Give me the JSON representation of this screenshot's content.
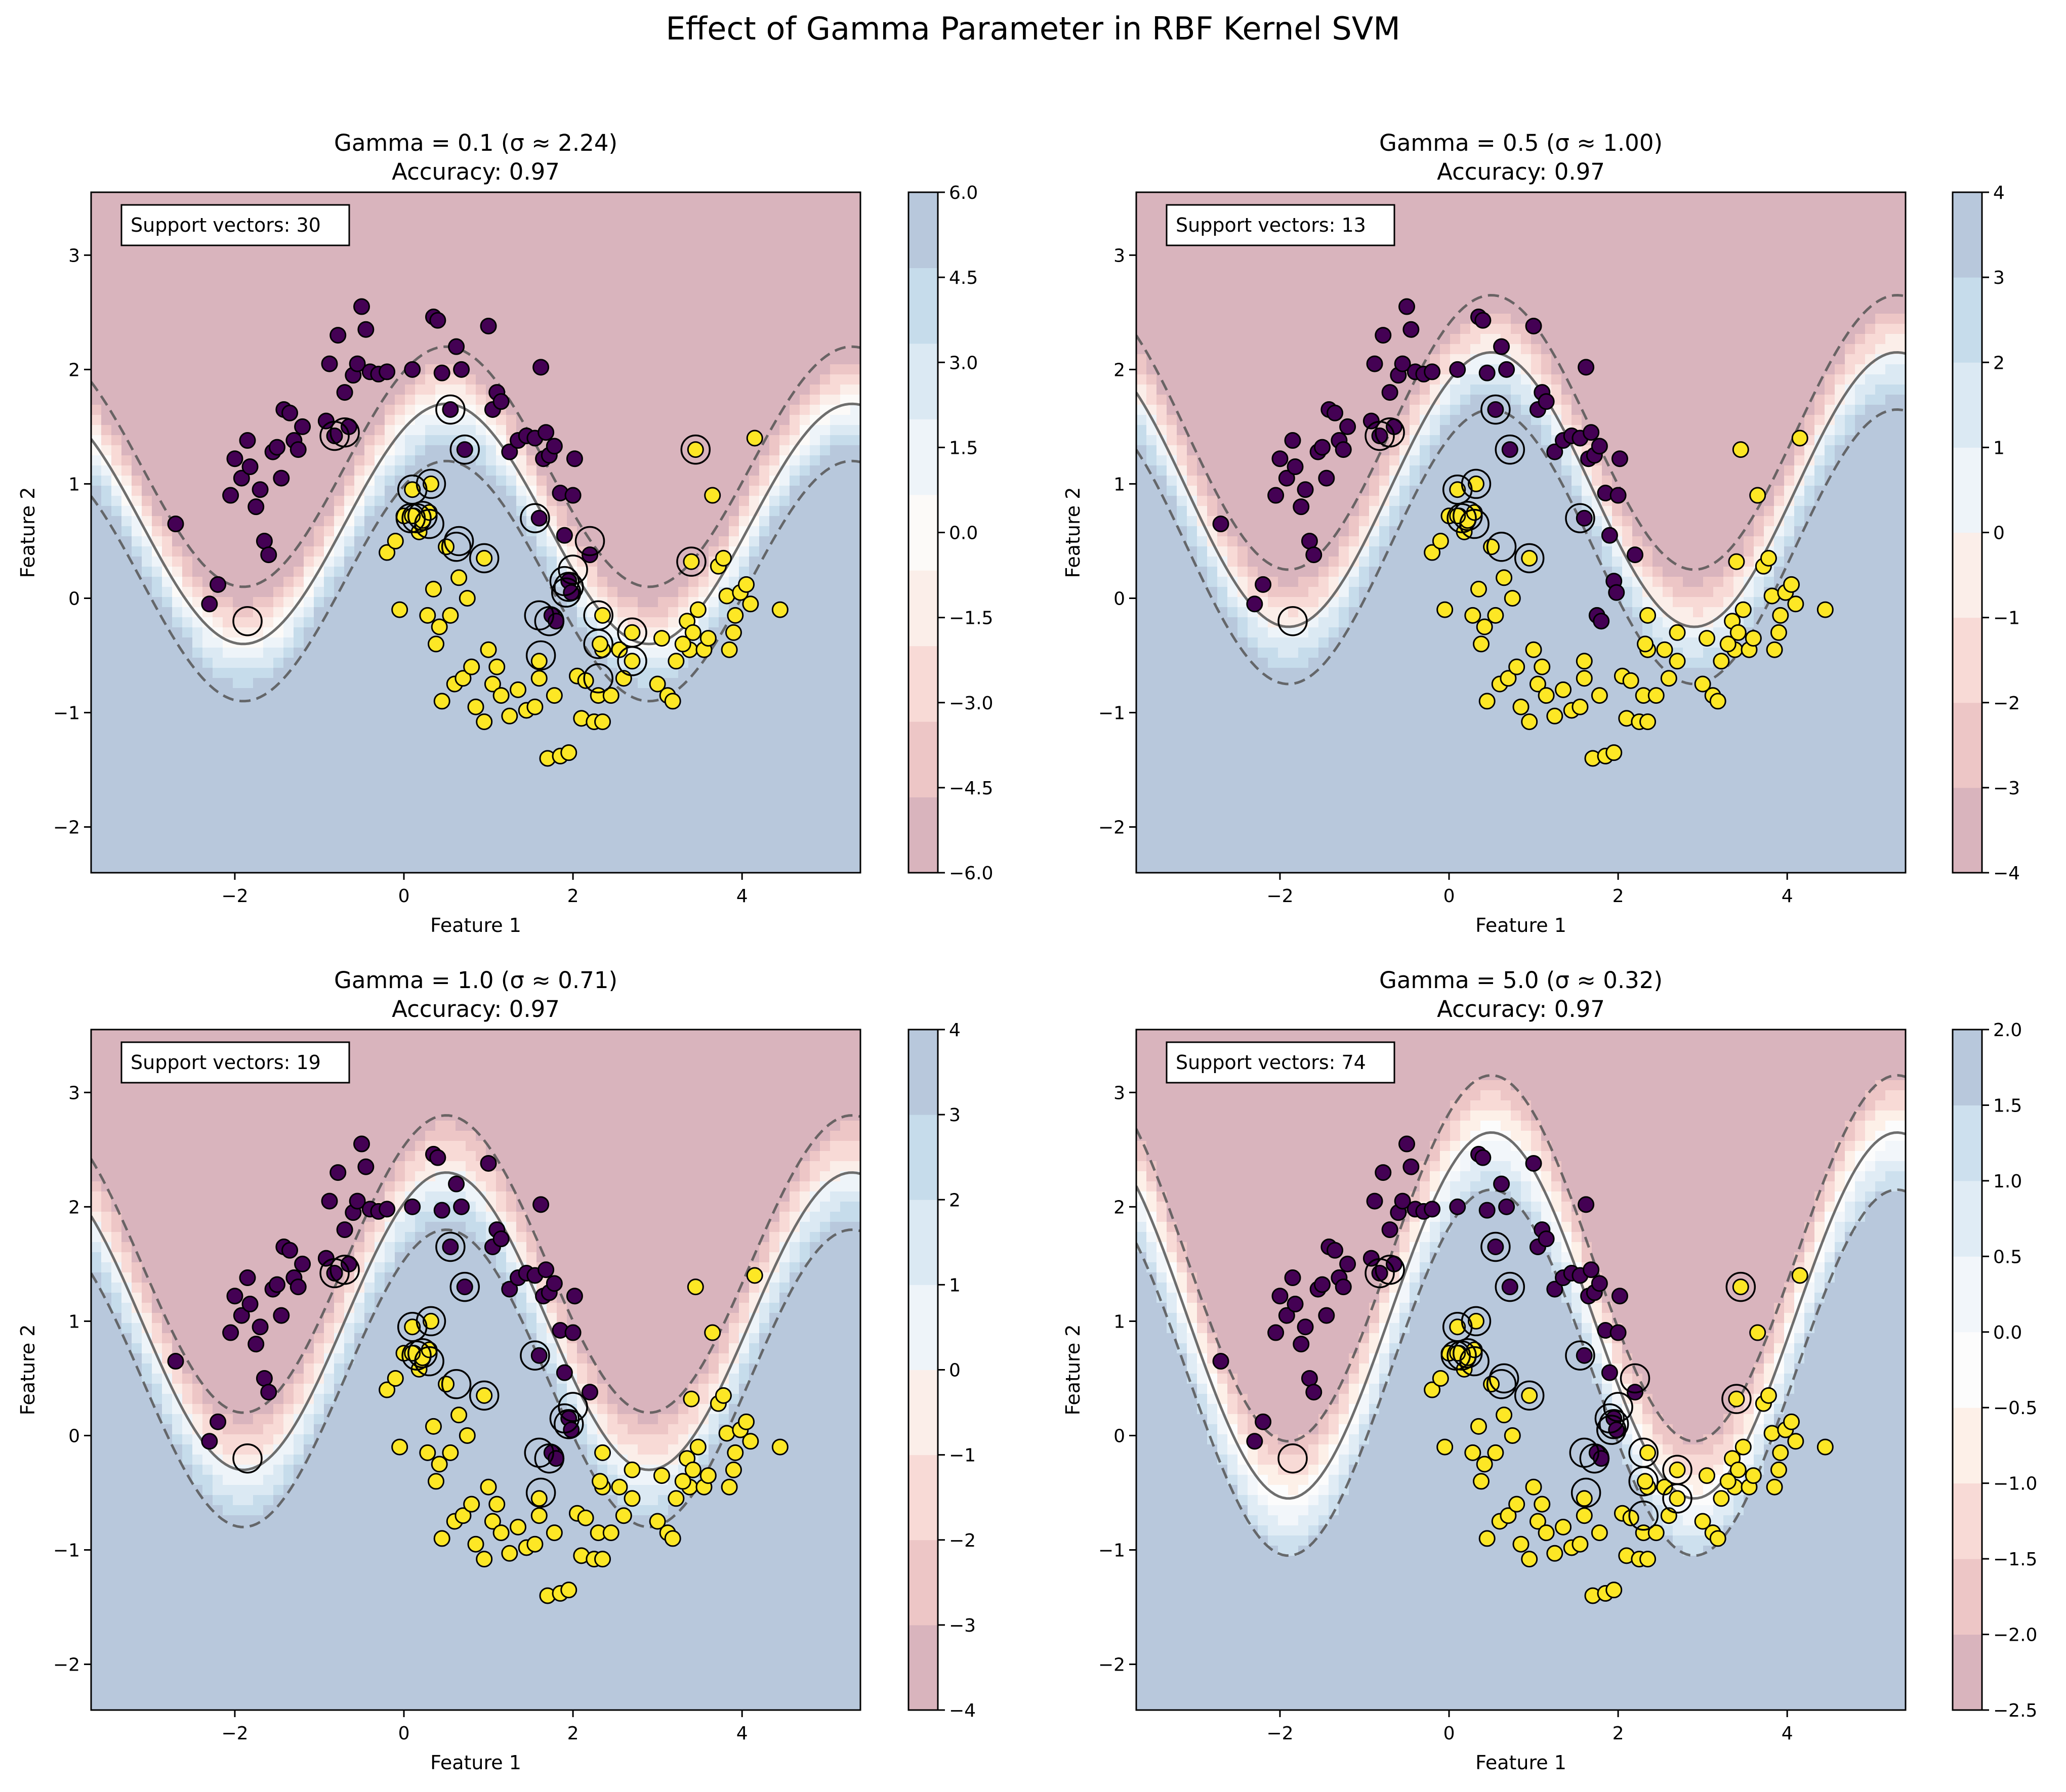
{
  "figure": {
    "title": "Effect of Gamma Parameter in RBF Kernel SVM"
  },
  "colors": {
    "class0": "#440154",
    "class1": "#fde725",
    "negative_dark": "#c35b6f",
    "positive_dark": "#6f8fb8",
    "contour_line": "#555555"
  },
  "chart_data": [
    {
      "type": "scatter",
      "title": "Gamma = 0.1 (σ ≈ 2.24)",
      "subtitle": "Accuracy: 0.97",
      "xlabel": "Feature 1",
      "ylabel": "Feature 2",
      "xlim": [
        -3.7,
        5.4
      ],
      "ylim": [
        -2.4,
        3.55
      ],
      "xticks": [
        -2,
        0,
        2,
        4
      ],
      "yticks": [
        -2,
        -1,
        0,
        1,
        2,
        3
      ],
      "annotation": "Support vectors: 30",
      "colorbar": {
        "ticks": [
          "-6.0",
          "-4.5",
          "-3.0",
          "-1.5",
          "0.0",
          "1.5",
          "3.0",
          "4.5",
          "6.0"
        ],
        "colors": [
          "#d9b4bd",
          "#edc6c6",
          "#f8dad6",
          "#fbeee9",
          "#fcfaf8",
          "#eef4f9",
          "#dbe9f3",
          "#c6dceb",
          "#b8c8dc"
        ]
      },
      "boundary": {
        "a": 1.05,
        "b": 0.15,
        "z_scale": 2.2
      },
      "support_vector_count": 30
    },
    {
      "type": "scatter",
      "title": "Gamma = 0.5 (σ ≈ 1.00)",
      "subtitle": "Accuracy: 0.97",
      "xlabel": "Feature 1",
      "ylabel": "Feature 2",
      "xlim": [
        -3.7,
        5.4
      ],
      "ylim": [
        -2.4,
        3.55
      ],
      "xticks": [
        -2,
        0,
        2,
        4
      ],
      "yticks": [
        -2,
        -1,
        0,
        1,
        2,
        3
      ],
      "annotation": "Support vectors: 13",
      "colorbar": {
        "ticks": [
          "-4",
          "-3",
          "-2",
          "-1",
          "0",
          "1",
          "2",
          "3",
          "4"
        ],
        "colors": [
          "#d9b4bd",
          "#edc6c6",
          "#f8dad6",
          "#fbeee9",
          "#eef4f9",
          "#dbe9f3",
          "#c6dceb",
          "#b8c8dc"
        ]
      },
      "boundary": {
        "a": 1.2,
        "b": 0.45,
        "z_scale": 2.0
      },
      "support_vector_count": 13
    },
    {
      "type": "scatter",
      "title": "Gamma = 1.0 (σ ≈ 0.71)",
      "subtitle": "Accuracy: 0.97",
      "xlabel": "Feature 1",
      "ylabel": "Feature 2",
      "xlim": [
        -3.7,
        5.4
      ],
      "ylim": [
        -2.4,
        3.55
      ],
      "xticks": [
        -2,
        0,
        2,
        4
      ],
      "yticks": [
        -2,
        -1,
        0,
        1,
        2,
        3
      ],
      "annotation": "Support vectors: 19",
      "colorbar": {
        "ticks": [
          "-4",
          "-3",
          "-2",
          "-1",
          "0",
          "1",
          "2",
          "3",
          "4"
        ],
        "colors": [
          "#d9b4bd",
          "#edc6c6",
          "#f8dad6",
          "#fbeee9",
          "#eef4f9",
          "#dbe9f3",
          "#c6dceb",
          "#b8c8dc"
        ]
      },
      "boundary": {
        "a": 1.3,
        "b": 0.5,
        "z_scale": 1.8
      },
      "support_vector_count": 19
    },
    {
      "type": "scatter",
      "title": "Gamma = 5.0 (σ ≈ 0.32)",
      "subtitle": "Accuracy: 0.97",
      "xlabel": "Feature 1",
      "ylabel": "Feature 2",
      "xlim": [
        -3.7,
        5.4
      ],
      "ylim": [
        -2.4,
        3.55
      ],
      "xticks": [
        -2,
        0,
        2,
        4
      ],
      "yticks": [
        -2,
        -1,
        0,
        1,
        2,
        3
      ],
      "annotation": "Support vectors: 74",
      "colorbar": {
        "ticks": [
          "-2.5",
          "-2.0",
          "-1.5",
          "-1.0",
          "-0.5",
          "0.0",
          "0.5",
          "1.0",
          "1.5",
          "2.0"
        ],
        "colors": [
          "#d9b4bd",
          "#edc6c6",
          "#f8dad6",
          "#fdf0e8",
          "#fcfcfc",
          "#f2f6fa",
          "#e0ecf5",
          "#cde0ee",
          "#b8c8dc"
        ]
      },
      "boundary": {
        "a": 1.6,
        "b": 0.55,
        "z_scale": 1.6
      },
      "support_vector_count": 74
    }
  ],
  "points": {
    "class0": [
      [
        -2.7,
        0.65
      ],
      [
        -2.3,
        -0.05
      ],
      [
        -2.2,
        0.12
      ],
      [
        -2.05,
        0.9
      ],
      [
        -2.0,
        1.22
      ],
      [
        -1.92,
        1.05
      ],
      [
        -1.85,
        1.38
      ],
      [
        -1.82,
        1.15
      ],
      [
        -1.75,
        0.8
      ],
      [
        -1.7,
        0.95
      ],
      [
        -1.65,
        0.5
      ],
      [
        -1.6,
        0.38
      ],
      [
        -1.55,
        1.28
      ],
      [
        -1.5,
        1.32
      ],
      [
        -1.45,
        1.05
      ],
      [
        -1.42,
        1.65
      ],
      [
        -1.35,
        1.62
      ],
      [
        -1.3,
        1.38
      ],
      [
        -1.25,
        1.3
      ],
      [
        -1.2,
        1.5
      ],
      [
        -0.92,
        1.55
      ],
      [
        -0.88,
        2.05
      ],
      [
        -0.82,
        1.42
      ],
      [
        -0.78,
        2.3
      ],
      [
        -0.7,
        1.8
      ],
      [
        -0.65,
        1.5
      ],
      [
        -0.6,
        1.95
      ],
      [
        -0.55,
        2.05
      ],
      [
        -0.5,
        2.55
      ],
      [
        -0.45,
        2.35
      ],
      [
        -0.4,
        1.98
      ],
      [
        -0.3,
        1.96
      ],
      [
        -0.2,
        1.98
      ],
      [
        0.1,
        2.0
      ],
      [
        0.35,
        2.46
      ],
      [
        0.4,
        2.43
      ],
      [
        0.45,
        1.97
      ],
      [
        0.55,
        1.65
      ],
      [
        0.62,
        2.2
      ],
      [
        0.68,
        2.0
      ],
      [
        0.72,
        1.3
      ],
      [
        1.0,
        2.38
      ],
      [
        1.05,
        1.65
      ],
      [
        1.1,
        1.8
      ],
      [
        1.15,
        1.72
      ],
      [
        1.25,
        1.28
      ],
      [
        1.35,
        1.38
      ],
      [
        1.45,
        1.42
      ],
      [
        1.55,
        1.4
      ],
      [
        1.6,
        0.7
      ],
      [
        1.62,
        2.02
      ],
      [
        1.65,
        1.22
      ],
      [
        1.68,
        1.45
      ],
      [
        1.72,
        1.25
      ],
      [
        1.75,
        -0.15
      ],
      [
        1.78,
        1.33
      ],
      [
        1.8,
        -0.2
      ],
      [
        1.85,
        0.92
      ],
      [
        1.9,
        0.55
      ],
      [
        1.95,
        0.15
      ],
      [
        1.98,
        0.05
      ],
      [
        2.0,
        0.9
      ],
      [
        2.02,
        1.22
      ],
      [
        2.2,
        0.38
      ]
    ],
    "class1": [
      [
        -0.2,
        0.4
      ],
      [
        -0.1,
        0.5
      ],
      [
        -0.05,
        -0.1
      ],
      [
        0.0,
        0.72
      ],
      [
        0.1,
        0.95
      ],
      [
        0.12,
        0.72
      ],
      [
        0.18,
        0.58
      ],
      [
        0.22,
        0.68
      ],
      [
        0.28,
        -0.15
      ],
      [
        0.3,
        0.75
      ],
      [
        0.35,
        0.08
      ],
      [
        0.38,
        -0.4
      ],
      [
        0.42,
        -0.25
      ],
      [
        0.45,
        -0.9
      ],
      [
        0.5,
        0.45
      ],
      [
        0.55,
        -0.15
      ],
      [
        0.6,
        -0.75
      ],
      [
        0.65,
        0.18
      ],
      [
        0.7,
        -0.7
      ],
      [
        0.75,
        0.0
      ],
      [
        0.8,
        -0.6
      ],
      [
        0.85,
        -0.95
      ],
      [
        0.95,
        -1.08
      ],
      [
        1.0,
        -0.45
      ],
      [
        1.05,
        -0.75
      ],
      [
        1.1,
        -0.6
      ],
      [
        1.15,
        -0.85
      ],
      [
        1.25,
        -1.03
      ],
      [
        1.35,
        -0.8
      ],
      [
        1.45,
        -0.98
      ],
      [
        1.55,
        -0.95
      ],
      [
        1.6,
        -0.7
      ],
      [
        1.7,
        -1.4
      ],
      [
        1.78,
        -0.85
      ],
      [
        1.85,
        -1.38
      ],
      [
        1.95,
        -1.35
      ],
      [
        2.05,
        -0.68
      ],
      [
        2.1,
        -1.05
      ],
      [
        2.15,
        -0.72
      ],
      [
        2.25,
        -1.08
      ],
      [
        2.3,
        -0.85
      ],
      [
        2.35,
        -1.08
      ],
      [
        2.45,
        -0.85
      ],
      [
        2.55,
        -0.45
      ],
      [
        2.6,
        -0.7
      ],
      [
        3.0,
        -0.75
      ],
      [
        3.05,
        -0.35
      ],
      [
        3.12,
        -0.85
      ],
      [
        3.18,
        -0.9
      ],
      [
        3.22,
        -0.55
      ],
      [
        3.35,
        -0.2
      ],
      [
        3.38,
        -0.45
      ],
      [
        3.42,
        -0.3
      ],
      [
        3.48,
        -0.1
      ],
      [
        3.55,
        -0.45
      ],
      [
        3.6,
        -0.35
      ],
      [
        3.65,
        0.9
      ],
      [
        3.72,
        0.28
      ],
      [
        3.78,
        0.35
      ],
      [
        3.82,
        0.02
      ],
      [
        3.85,
        -0.45
      ],
      [
        3.9,
        -0.3
      ],
      [
        3.92,
        -0.15
      ],
      [
        3.98,
        0.05
      ],
      [
        4.05,
        0.12
      ],
      [
        4.1,
        -0.05
      ],
      [
        4.15,
        1.4
      ],
      [
        4.45,
        -0.1
      ],
      [
        2.7,
        -0.55
      ],
      [
        2.35,
        -0.45
      ],
      [
        2.7,
        -0.3
      ],
      [
        1.6,
        -0.55
      ],
      [
        3.3,
        -0.4
      ],
      [
        3.45,
        1.3
      ],
      [
        3.4,
        0.32
      ],
      [
        0.32,
        1.0
      ],
      [
        0.95,
        0.35
      ],
      [
        2.35,
        -0.15
      ],
      [
        2.32,
        -0.4
      ],
      [
        0.1,
        0.72
      ]
    ],
    "support_vectors": [
      [
        -1.85,
        -0.2
      ],
      [
        -0.82,
        1.42
      ],
      [
        -0.7,
        1.45
      ],
      [
        0.1,
        0.95
      ],
      [
        0.32,
        1.0
      ],
      [
        0.15,
        0.7
      ],
      [
        0.22,
        0.72
      ],
      [
        0.3,
        0.65
      ],
      [
        0.55,
        1.65
      ],
      [
        0.62,
        0.45
      ],
      [
        0.72,
        1.3
      ],
      [
        0.95,
        0.35
      ],
      [
        1.55,
        0.7
      ],
      [
        1.6,
        -0.15
      ],
      [
        1.62,
        -0.5
      ],
      [
        1.72,
        -0.2
      ],
      [
        1.9,
        0.15
      ],
      [
        1.95,
        0.1
      ],
      [
        2.0,
        0.25
      ],
      [
        2.2,
        0.5
      ],
      [
        2.3,
        -0.15
      ],
      [
        2.3,
        -0.4
      ],
      [
        2.3,
        -0.7
      ],
      [
        2.7,
        -0.3
      ],
      [
        2.7,
        -0.55
      ],
      [
        3.4,
        0.32
      ],
      [
        3.45,
        1.3
      ],
      [
        1.92,
        0.05
      ],
      [
        0.65,
        0.5
      ],
      [
        0.08,
        0.7
      ]
    ]
  }
}
